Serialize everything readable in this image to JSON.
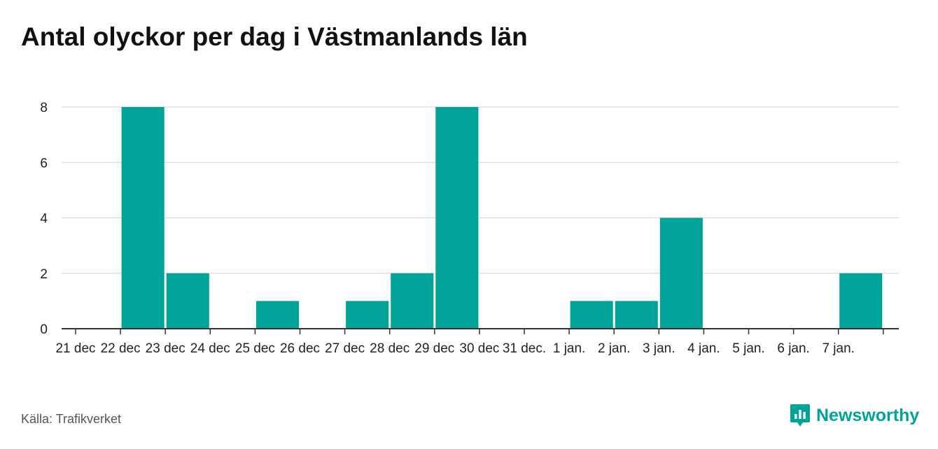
{
  "title": "Antal olyckor per dag i Västmanlands län",
  "source": "Källa: Trafikverket",
  "brand": "Newsworthy",
  "colors": {
    "bar": "#00a398",
    "grid": "#d9d9d9",
    "axis": "#333333"
  },
  "chart_data": {
    "type": "bar",
    "title": "Antal olyckor per dag i Västmanlands län",
    "categories": [
      "21 dec",
      "22 dec",
      "23 dec",
      "24 dec",
      "25 dec",
      "26 dec",
      "27 dec",
      "28 dec",
      "29 dec",
      "30 dec",
      "31 dec.",
      "1 jan.",
      "2 jan.",
      "3 jan.",
      "4 jan.",
      "5 jan.",
      "6 jan.",
      "7 jan."
    ],
    "series": [
      {
        "values": [
          0,
          8,
          2,
          0,
          1,
          0,
          1,
          2,
          8,
          0,
          0,
          1,
          1,
          4,
          0,
          0,
          0,
          2
        ]
      }
    ],
    "ylim": [
      0,
      8
    ],
    "yticks": [
      0,
      2,
      4,
      6,
      8
    ],
    "grid": true,
    "legend": false
  }
}
